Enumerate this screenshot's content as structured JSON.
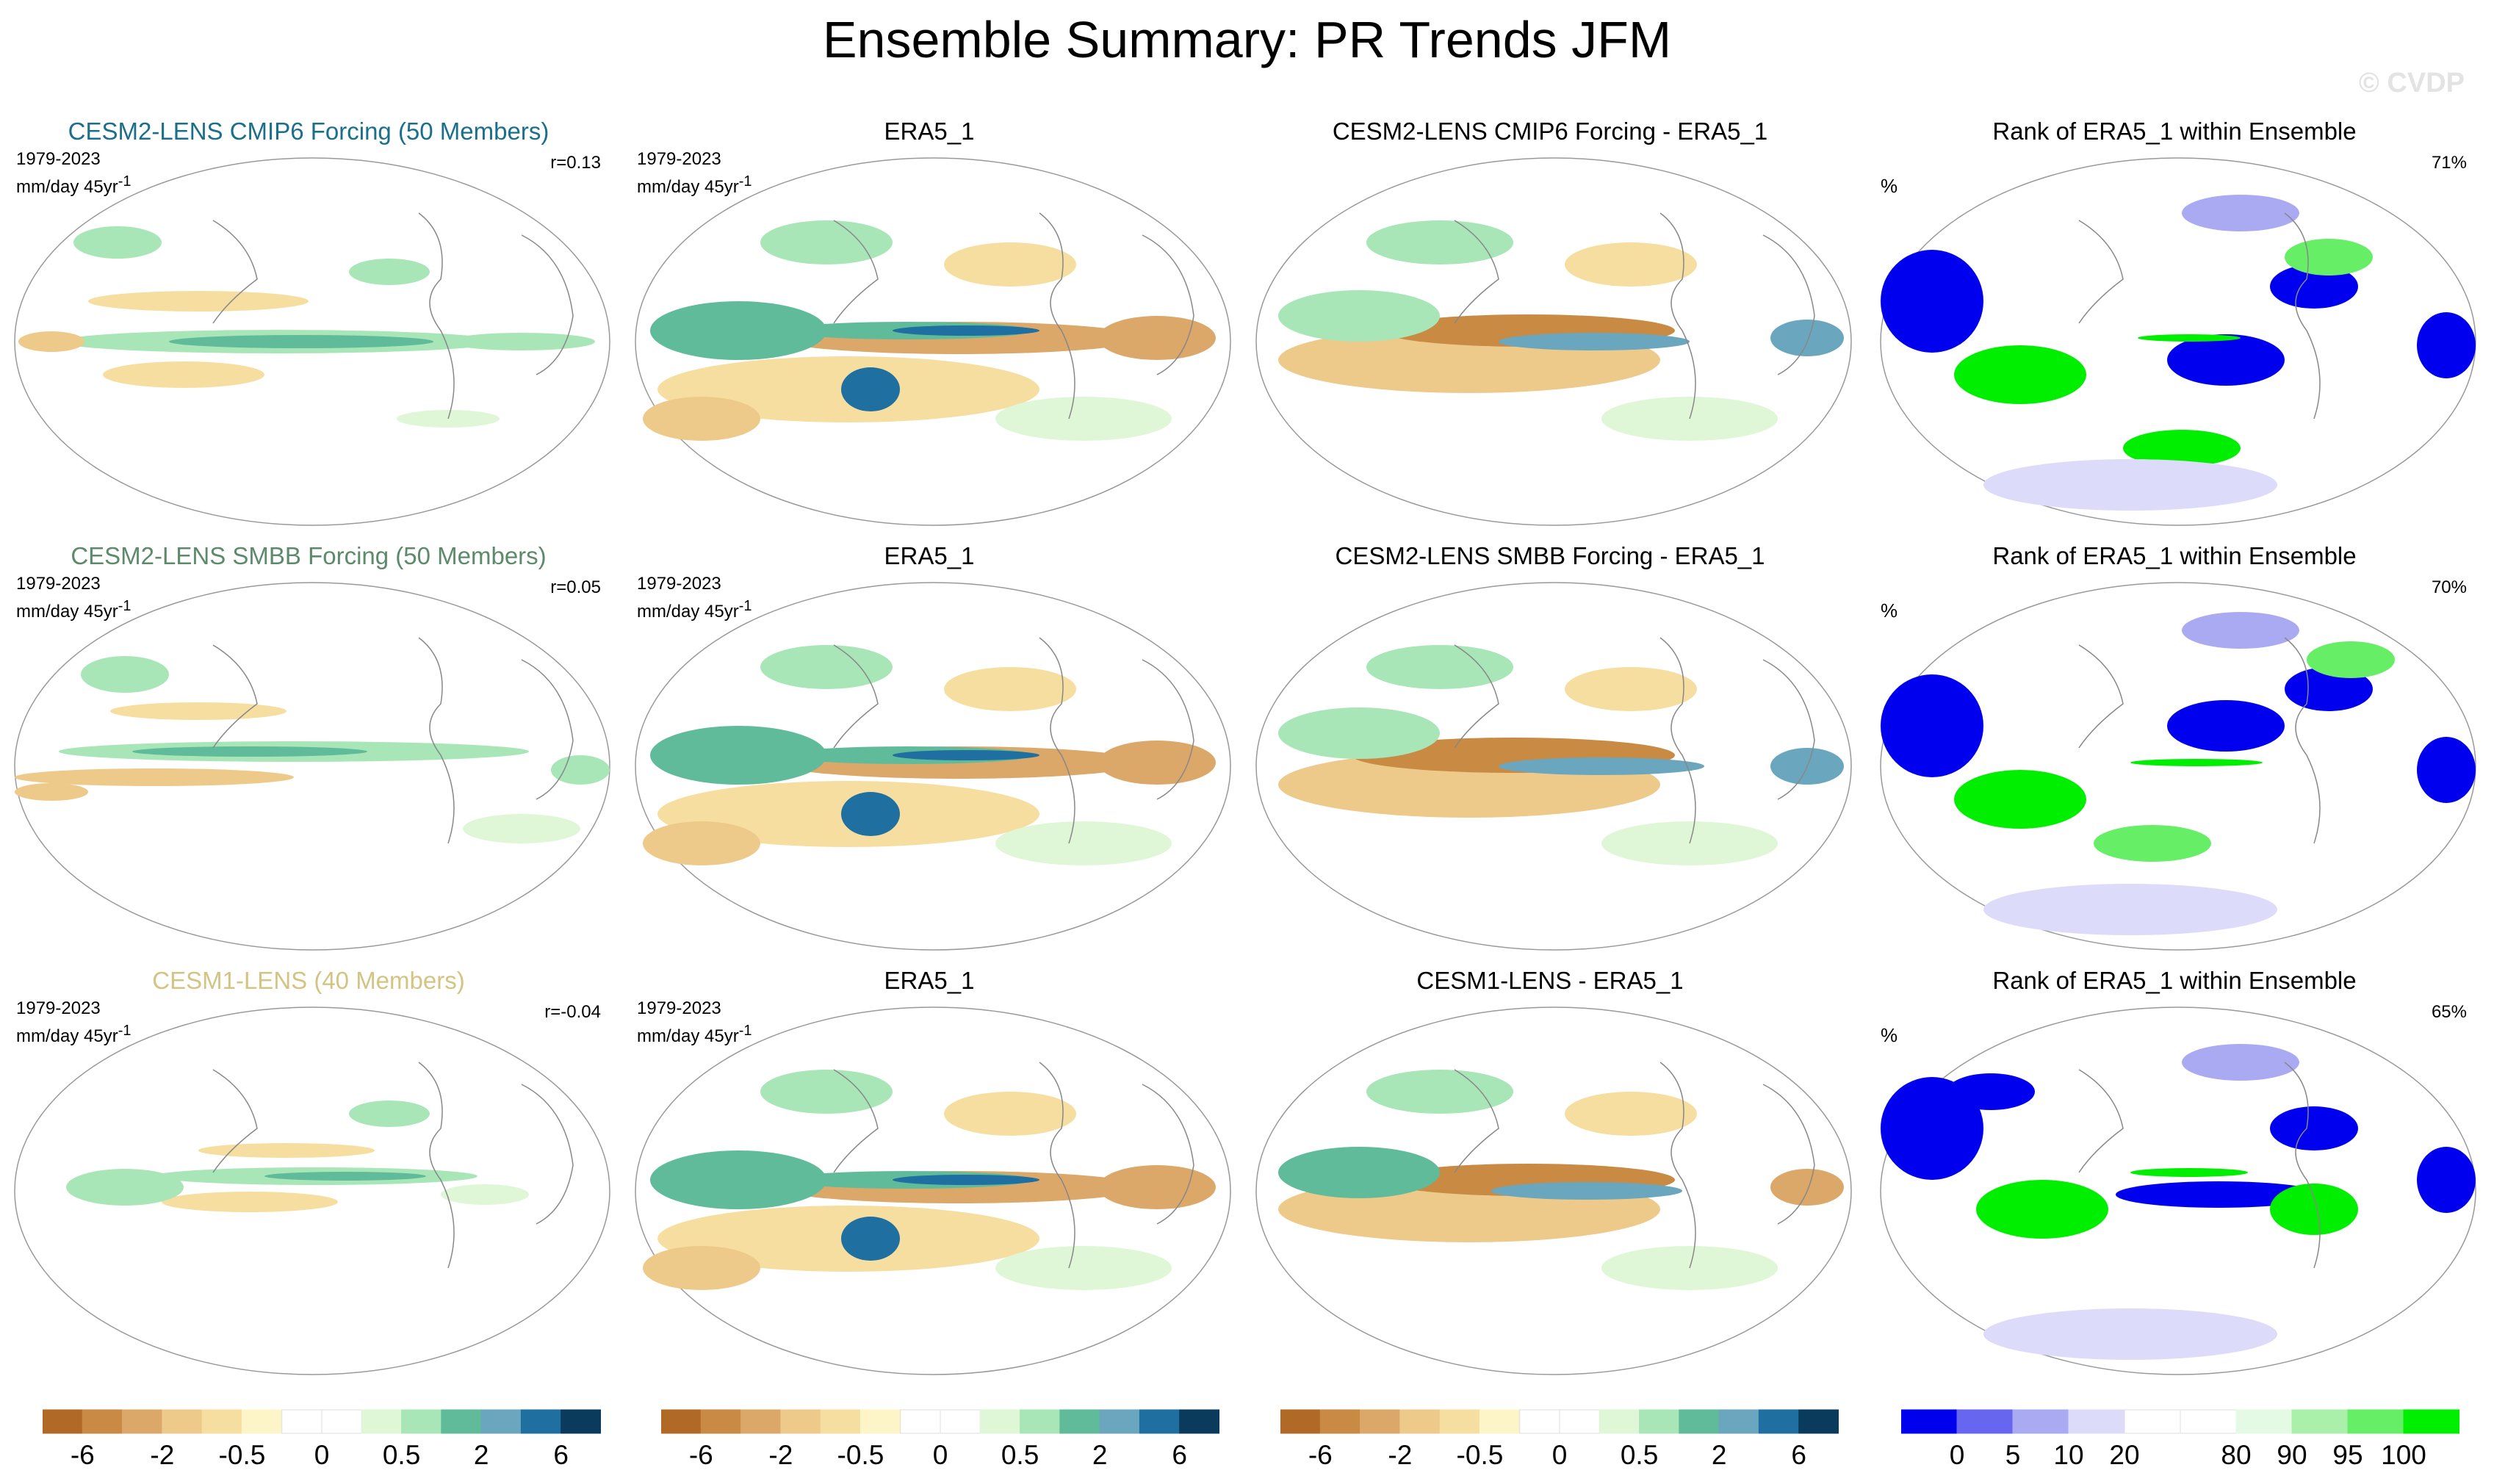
{
  "page": {
    "title": "Ensemble Summary: PR Trends JFM",
    "watermark": "© CVDP"
  },
  "colors": {
    "brown_green_scale": [
      "#b06a26",
      "#c98a44",
      "#dba869",
      "#edc98a",
      "#f5de9f",
      "#fdf5c8",
      "#ffffff",
      "#ffffff",
      "#dff7d6",
      "#a8e6b8",
      "#5fbb99",
      "#6aa6be",
      "#1f6fa1",
      "#0a3a5c"
    ],
    "rank_scale": [
      "#0000ee",
      "#6666f0",
      "#aaaaf2",
      "#dcdcfa",
      "#ffffff",
      "#ffffff",
      "#e4fae4",
      "#aaf0aa",
      "#66ee66",
      "#00ee00"
    ],
    "row_title_colors": [
      "#1a6f8c",
      "#5c8a6a",
      "#d4c484"
    ],
    "land_outline": "#888888"
  },
  "rows": [
    {
      "model_title": "CESM2-LENS CMIP6 Forcing (50 Members)",
      "period": "1979-2023",
      "units_line": "mm/day 45yr",
      "units_sup": "-1",
      "corr": "r=0.13",
      "obs_title": "ERA5_1",
      "obs_period": "1979-2023",
      "obs_units_line": "mm/day 45yr",
      "obs_units_sup": "-1",
      "diff_title": "CESM2-LENS CMIP6 Forcing - ERA5_1",
      "rank_title": "Rank of ERA5_1 within Ensemble",
      "rank_unit": "%",
      "rank_value": "71%"
    },
    {
      "model_title": "CESM2-LENS SMBB Forcing (50 Members)",
      "period": "1979-2023",
      "units_line": "mm/day 45yr",
      "units_sup": "-1",
      "corr": "r=0.05",
      "obs_title": "ERA5_1",
      "obs_period": "1979-2023",
      "obs_units_line": "mm/day 45yr",
      "obs_units_sup": "-1",
      "diff_title": "CESM2-LENS SMBB Forcing - ERA5_1",
      "rank_title": "Rank of ERA5_1 within Ensemble",
      "rank_unit": "%",
      "rank_value": "70%"
    },
    {
      "model_title": "CESM1-LENS (40 Members)",
      "period": "1979-2023",
      "units_line": "mm/day 45yr",
      "units_sup": "-1",
      "corr": "r=-0.04",
      "obs_title": "ERA5_1",
      "obs_period": "1979-2023",
      "obs_units_line": "mm/day 45yr",
      "obs_units_sup": "-1",
      "diff_title": "CESM1-LENS - ERA5_1",
      "rank_title": "Rank of ERA5_1 within Ensemble",
      "rank_unit": "%",
      "rank_value": "65%"
    }
  ],
  "colorbars": {
    "trend_labels": [
      "-6",
      "-2",
      "-0.5",
      "0",
      "0.5",
      "2",
      "6"
    ],
    "rank_labels": [
      "0",
      "5",
      "10",
      "20",
      "80",
      "90",
      "95",
      "100"
    ]
  }
}
